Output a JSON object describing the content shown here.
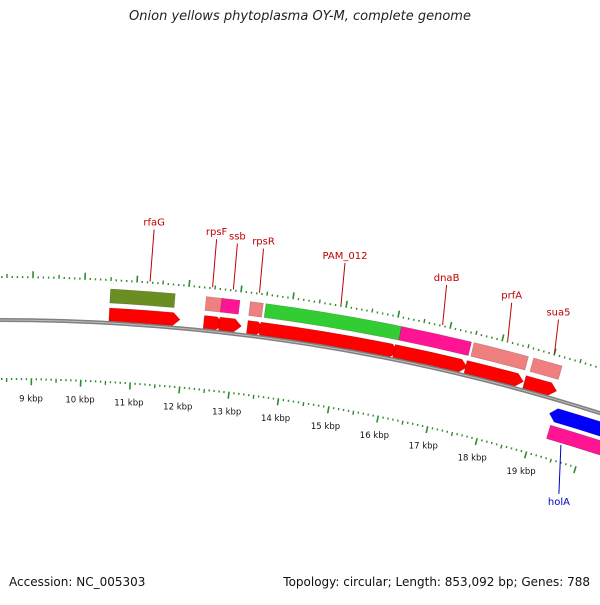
{
  "header": {
    "title": "Onion yellows phytoplasma OY-M, complete genome"
  },
  "footer": {
    "accession": "Accession: NC_005303",
    "summary": "Topology: circular; Length: 853,092 bp; Genes: 788"
  },
  "ticks": [
    {
      "label": "9 kbp"
    },
    {
      "label": "10 kbp"
    },
    {
      "label": "11 kbp"
    },
    {
      "label": "12 kbp"
    },
    {
      "label": "13 kbp"
    },
    {
      "label": "14 kbp"
    },
    {
      "label": "15 kbp"
    },
    {
      "label": "16 kbp"
    },
    {
      "label": "17 kbp"
    },
    {
      "label": "18 kbp"
    },
    {
      "label": "19 kbp"
    }
  ],
  "gene_labels": [
    {
      "name": "rfaG",
      "strand": "plus"
    },
    {
      "name": "rpsF",
      "strand": "plus"
    },
    {
      "name": "ssb",
      "strand": "plus"
    },
    {
      "name": "rpsR",
      "strand": "plus"
    },
    {
      "name": "PAM_012",
      "strand": "plus"
    },
    {
      "name": "dnaB",
      "strand": "plus"
    },
    {
      "name": "prfA",
      "strand": "plus"
    },
    {
      "name": "sua5",
      "strand": "plus"
    },
    {
      "name": "holA",
      "strand": "minus"
    }
  ],
  "colors": {
    "backbone": "#808080",
    "tick": "#2e8b2e",
    "cds_arrow": "#ff0000",
    "cds_arrow_minus": "#0000ff",
    "label_plus": "#c00000",
    "label_minus": "#0000c0",
    "cog_olive": "#6b8e23",
    "cog_pink": "#f08080",
    "cog_magenta": "#ff1493",
    "cog_green": "#32cd32",
    "cog_blue": "#0000ff"
  }
}
